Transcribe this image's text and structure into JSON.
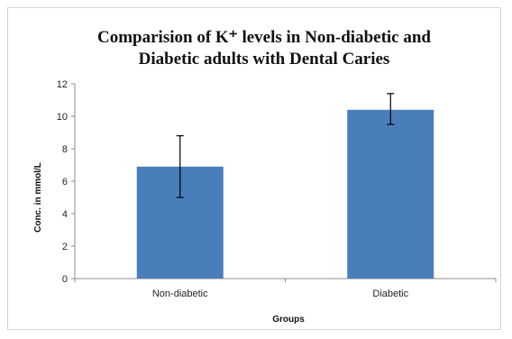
{
  "chart_data": {
    "type": "bar",
    "title_lines": [
      "Comparision of K⁺ levels in  Non-diabetic and",
      "Diabetic adults with Dental Caries"
    ],
    "categories": [
      "Non-diabetic",
      "Diabetic"
    ],
    "values": [
      6.9,
      10.4
    ],
    "error_bars": [
      {
        "low": 5.0,
        "high": 8.8
      },
      {
        "low": 9.5,
        "high": 11.4
      }
    ],
    "xlabel": "Groups",
    "ylabel": "Conc. in mmol/L",
    "ylim": [
      0,
      12
    ],
    "yticks": [
      0,
      2,
      4,
      6,
      8,
      10,
      12
    ],
    "grid": false,
    "legend": "none",
    "bar_color": "#4a7ebb",
    "error_bar_color": "#000000"
  }
}
